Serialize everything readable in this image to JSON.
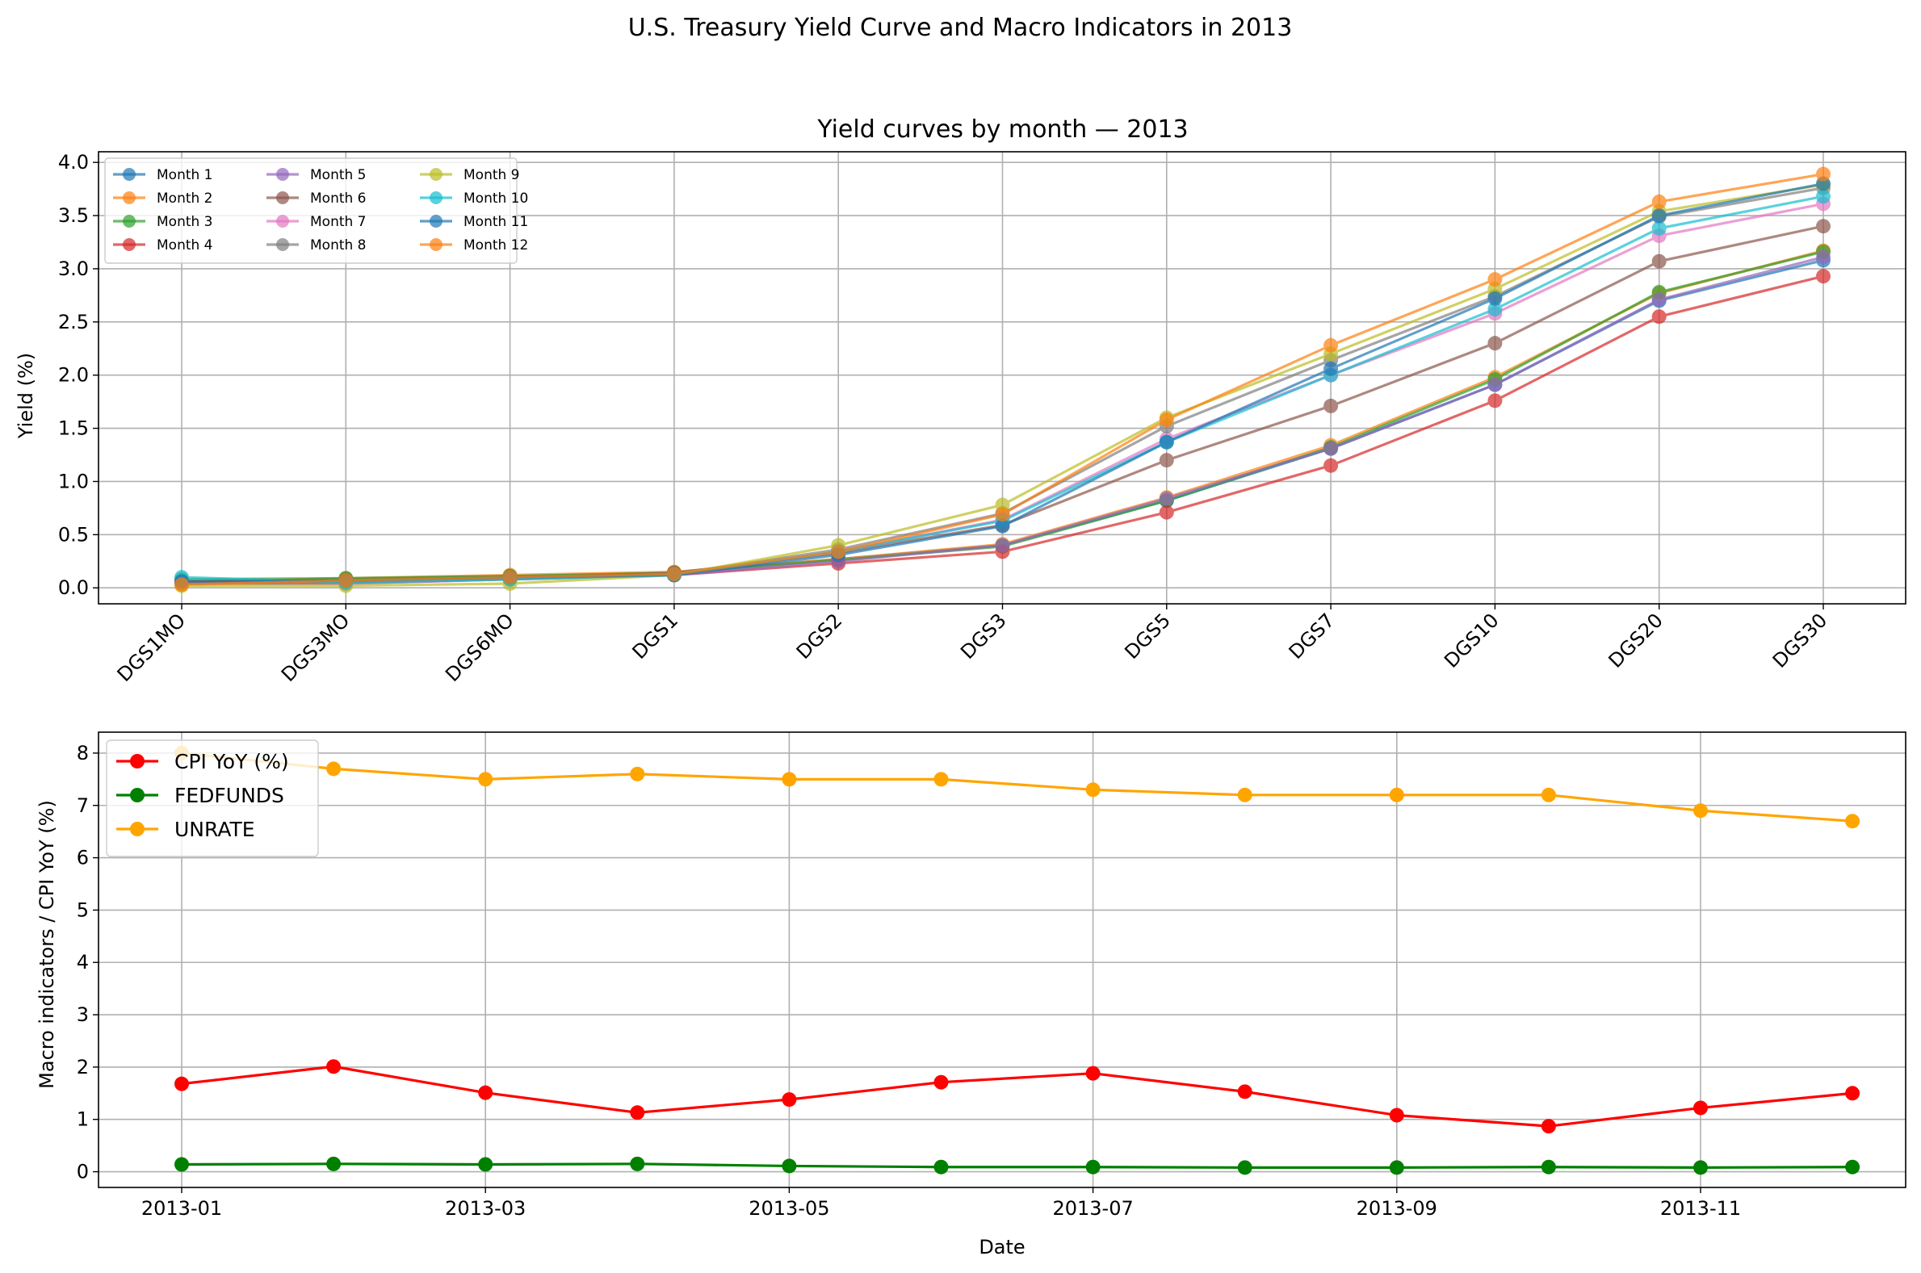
{
  "figure": {
    "suptitle": "U.S. Treasury Yield Curve and Macro Indicators in 2013"
  },
  "chart_data": [
    {
      "type": "line",
      "title": "Yield curves by month — 2013",
      "xlabel": "",
      "ylabel": "Yield (%)",
      "categories": [
        "DGS1MO",
        "DGS3MO",
        "DGS6MO",
        "DGS1",
        "DGS2",
        "DGS3",
        "DGS5",
        "DGS7",
        "DGS10",
        "DGS20",
        "DGS30"
      ],
      "ylim": [
        -0.15,
        4.1
      ],
      "yticks": [
        "0.0",
        "0.5",
        "1.0",
        "1.5",
        "2.0",
        "2.5",
        "3.0",
        "3.5",
        "4.0"
      ],
      "ytick_values": [
        0,
        0.5,
        1.0,
        1.5,
        2.0,
        2.5,
        3.0,
        3.5,
        4.0
      ],
      "grid": true,
      "legend": {
        "placement": "upper-left",
        "columns": 3
      },
      "series": [
        {
          "name": "Month 1",
          "color": "#1f77b4",
          "values": [
            0.06,
            0.08,
            0.11,
            0.14,
            0.27,
            0.4,
            0.82,
            1.31,
            1.91,
            2.7,
            3.08
          ]
        },
        {
          "name": "Month 2",
          "color": "#ff7f0e",
          "values": [
            0.05,
            0.09,
            0.12,
            0.15,
            0.27,
            0.41,
            0.85,
            1.34,
            1.98,
            2.77,
            3.17
          ]
        },
        {
          "name": "Month 3",
          "color": "#2ca02c",
          "values": [
            0.08,
            0.09,
            0.11,
            0.14,
            0.26,
            0.39,
            0.82,
            1.32,
            1.96,
            2.78,
            3.16
          ]
        },
        {
          "name": "Month 4",
          "color": "#d62728",
          "values": [
            0.06,
            0.06,
            0.09,
            0.12,
            0.23,
            0.34,
            0.71,
            1.15,
            1.76,
            2.55,
            2.93
          ]
        },
        {
          "name": "Month 5",
          "color": "#9467bd",
          "values": [
            0.04,
            0.04,
            0.08,
            0.12,
            0.25,
            0.4,
            0.84,
            1.31,
            1.91,
            2.71,
            3.11
          ]
        },
        {
          "name": "Month 6",
          "color": "#8c564b",
          "values": [
            0.04,
            0.05,
            0.09,
            0.14,
            0.33,
            0.59,
            1.2,
            1.71,
            2.3,
            3.07,
            3.4
          ]
        },
        {
          "name": "Month 7",
          "color": "#e377c2",
          "values": [
            0.04,
            0.04,
            0.08,
            0.12,
            0.34,
            0.64,
            1.4,
            2.0,
            2.58,
            3.31,
            3.61
          ]
        },
        {
          "name": "Month 8",
          "color": "#7f7f7f",
          "values": [
            0.04,
            0.05,
            0.08,
            0.13,
            0.36,
            0.7,
            1.52,
            2.14,
            2.74,
            3.49,
            3.76
          ]
        },
        {
          "name": "Month 9",
          "color": "#bcbd22",
          "values": [
            0.02,
            0.02,
            0.04,
            0.12,
            0.4,
            0.78,
            1.6,
            2.2,
            2.81,
            3.54,
            3.79
          ]
        },
        {
          "name": "Month 10",
          "color": "#17becf",
          "values": [
            0.1,
            0.05,
            0.08,
            0.12,
            0.34,
            0.63,
            1.37,
            2.0,
            2.62,
            3.38,
            3.68
          ]
        },
        {
          "name": "Month 11",
          "color": "#1f77b4",
          "values": [
            0.06,
            0.07,
            0.1,
            0.12,
            0.31,
            0.58,
            1.37,
            2.06,
            2.72,
            3.5,
            3.8
          ]
        },
        {
          "name": "Month 12",
          "color": "#ff7f0e",
          "values": [
            0.03,
            0.07,
            0.1,
            0.13,
            0.34,
            0.69,
            1.58,
            2.28,
            2.9,
            3.63,
            3.89
          ]
        }
      ]
    },
    {
      "type": "line",
      "title": "",
      "xlabel": "Date",
      "ylabel": "Macro indicators / CPI YoY (%)",
      "x": [
        "2013-01",
        "2013-02",
        "2013-03",
        "2013-04",
        "2013-05",
        "2013-06",
        "2013-07",
        "2013-08",
        "2013-09",
        "2013-10",
        "2013-11",
        "2013-12"
      ],
      "xticks": [
        "2013-01",
        "2013-03",
        "2013-05",
        "2013-07",
        "2013-09",
        "2013-11"
      ],
      "ylim": [
        -0.3,
        8.4
      ],
      "yticks": [
        "0",
        "1",
        "2",
        "3",
        "4",
        "5",
        "6",
        "7",
        "8"
      ],
      "ytick_values": [
        0,
        1,
        2,
        3,
        4,
        5,
        6,
        7,
        8
      ],
      "grid": true,
      "legend": {
        "placement": "upper-left",
        "columns": 1
      },
      "series": [
        {
          "name": "CPI YoY (%)",
          "color": "#ff0000",
          "values": [
            1.68,
            2.01,
            1.51,
            1.13,
            1.38,
            1.71,
            1.88,
            1.53,
            1.08,
            0.87,
            1.22,
            1.5
          ]
        },
        {
          "name": "FEDFUNDS",
          "color": "#008000",
          "values": [
            0.14,
            0.15,
            0.14,
            0.15,
            0.11,
            0.09,
            0.09,
            0.08,
            0.08,
            0.09,
            0.08,
            0.09
          ]
        },
        {
          "name": "UNRATE",
          "color": "#ffa500",
          "values": [
            8.0,
            7.7,
            7.5,
            7.6,
            7.5,
            7.5,
            7.3,
            7.2,
            7.2,
            7.2,
            6.9,
            6.7
          ]
        }
      ]
    }
  ]
}
